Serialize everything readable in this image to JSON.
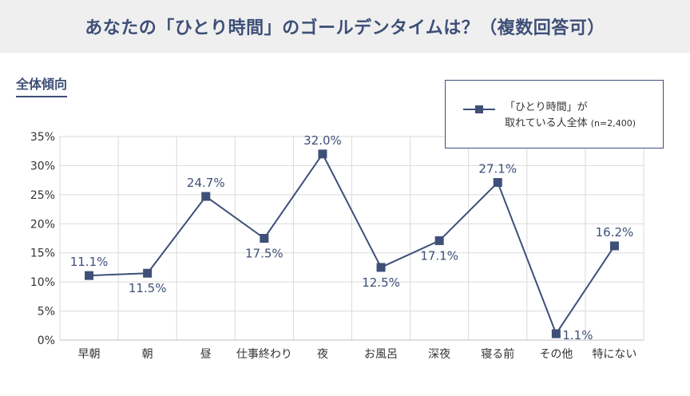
{
  "header": {
    "title": "あなたの「ひとり時間」のゴールデンタイムは？（複数回答可）"
  },
  "section": {
    "label": "全体傾向"
  },
  "legend": {
    "line1": "「ひとり時間」が",
    "line2": "取れている人全体",
    "note": "(n=2,400)"
  },
  "colors": {
    "series": "#3e4f78",
    "grid": "#d9d9d9",
    "axis_text": "#333333"
  },
  "chart_data": {
    "type": "line",
    "title": "",
    "xlabel": "",
    "ylabel": "",
    "categories": [
      "早朝",
      "朝",
      "昼",
      "仕事終わり",
      "夜",
      "お風呂",
      "深夜",
      "寝る前",
      "その他",
      "特にない"
    ],
    "series": [
      {
        "name": "「ひとり時間」が取れている人全体 (n=2,400)",
        "values": [
          11.1,
          11.5,
          24.7,
          17.5,
          32.0,
          12.5,
          17.1,
          27.1,
          1.1,
          16.2
        ],
        "labels": [
          "11.1%",
          "11.5%",
          "24.7%",
          "17.5%",
          "32.0%",
          "12.5%",
          "17.1%",
          "27.1%",
          "1.1%",
          "16.2%"
        ]
      }
    ],
    "yticks": [
      "0%",
      "5%",
      "10%",
      "15%",
      "20%",
      "25%",
      "30%",
      "35%"
    ],
    "ylim": [
      0,
      35
    ],
    "grid": true,
    "legend_position": "top-right"
  }
}
